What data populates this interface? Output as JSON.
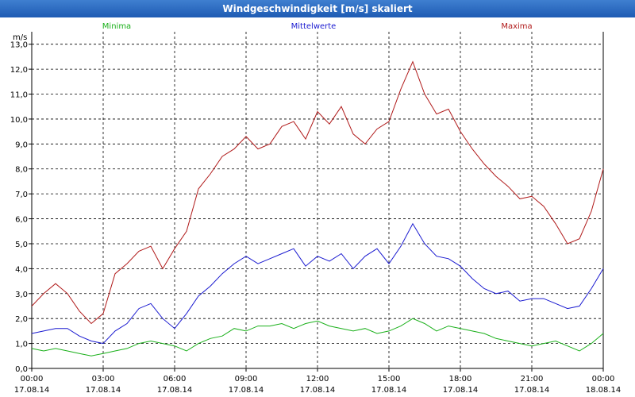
{
  "window": {
    "title": "Windgeschwindigkeit [m/s] skaliert"
  },
  "chart_data": {
    "type": "line",
    "title": "Windgeschwindigkeit [m/s] skaliert",
    "ylabel": "m/s",
    "ylim": [
      0,
      13.5
    ],
    "xlim_hours": [
      0,
      24
    ],
    "grid": true,
    "legend_position": "top",
    "y_ticks": [
      "0,0",
      "1,0",
      "2,0",
      "3,0",
      "4,0",
      "5,0",
      "6,0",
      "7,0",
      "8,0",
      "9,0",
      "10,0",
      "11,0",
      "12,0",
      "13,0"
    ],
    "x_ticks": [
      {
        "time": "00:00",
        "date": "17.08.14"
      },
      {
        "time": "03:00",
        "date": "17.08.14"
      },
      {
        "time": "06:00",
        "date": "17.08.14"
      },
      {
        "time": "09:00",
        "date": "17.08.14"
      },
      {
        "time": "12:00",
        "date": "17.08.14"
      },
      {
        "time": "15:00",
        "date": "17.08.14"
      },
      {
        "time": "18:00",
        "date": "17.08.14"
      },
      {
        "time": "21:00",
        "date": "17.08.14"
      },
      {
        "time": "00:00",
        "date": "18.08.14"
      }
    ],
    "series": [
      {
        "name": "Minima",
        "color": "#1ab01a",
        "x": [
          0,
          0.5,
          1,
          1.5,
          2,
          2.5,
          3,
          3.5,
          4,
          4.5,
          5,
          5.5,
          6,
          6.5,
          7,
          7.5,
          8,
          8.5,
          9,
          9.5,
          10,
          10.5,
          11,
          11.5,
          12,
          12.5,
          13,
          13.5,
          14,
          14.5,
          15,
          15.5,
          16,
          16.5,
          17,
          17.5,
          18,
          18.5,
          19,
          19.5,
          20,
          20.5,
          21,
          21.5,
          22,
          22.5,
          23,
          23.5,
          24
        ],
        "values": [
          0.8,
          0.7,
          0.8,
          0.7,
          0.6,
          0.5,
          0.6,
          0.7,
          0.8,
          1.0,
          1.1,
          1.0,
          0.9,
          0.7,
          1.0,
          1.2,
          1.3,
          1.6,
          1.5,
          1.7,
          1.7,
          1.8,
          1.6,
          1.8,
          1.9,
          1.7,
          1.6,
          1.5,
          1.6,
          1.4,
          1.5,
          1.7,
          2.0,
          1.8,
          1.5,
          1.7,
          1.6,
          1.5,
          1.4,
          1.2,
          1.1,
          1.0,
          0.9,
          1.0,
          1.1,
          0.9,
          0.7,
          1.0,
          1.4
        ]
      },
      {
        "name": "Mittelwerte",
        "color": "#1a1ad0",
        "x": [
          0,
          0.5,
          1,
          1.5,
          2,
          2.5,
          3,
          3.5,
          4,
          4.5,
          5,
          5.5,
          6,
          6.5,
          7,
          7.5,
          8,
          8.5,
          9,
          9.5,
          10,
          10.5,
          11,
          11.5,
          12,
          12.5,
          13,
          13.5,
          14,
          14.5,
          15,
          15.5,
          16,
          16.5,
          17,
          17.5,
          18,
          18.5,
          19,
          19.5,
          20,
          20.5,
          21,
          21.5,
          22,
          22.5,
          23,
          23.5,
          24
        ],
        "values": [
          1.4,
          1.5,
          1.6,
          1.6,
          1.3,
          1.1,
          1.0,
          1.5,
          1.8,
          2.4,
          2.6,
          2.0,
          1.6,
          2.2,
          2.9,
          3.3,
          3.8,
          4.2,
          4.5,
          4.2,
          4.4,
          4.6,
          4.8,
          4.1,
          4.5,
          4.3,
          4.6,
          4.0,
          4.5,
          4.8,
          4.2,
          4.9,
          5.8,
          5.0,
          4.5,
          4.4,
          4.1,
          3.6,
          3.2,
          3.0,
          3.1,
          2.7,
          2.8,
          2.8,
          2.6,
          2.4,
          2.5,
          3.2,
          4.0
        ]
      },
      {
        "name": "Maxima",
        "color": "#b01a1a",
        "x": [
          0,
          0.5,
          1,
          1.5,
          2,
          2.5,
          3,
          3.5,
          4,
          4.5,
          5,
          5.5,
          6,
          6.5,
          7,
          7.5,
          8,
          8.5,
          9,
          9.5,
          10,
          10.5,
          11,
          11.5,
          12,
          12.5,
          13,
          13.5,
          14,
          14.5,
          15,
          15.5,
          16,
          16.5,
          17,
          17.5,
          18,
          18.5,
          19,
          19.5,
          20,
          20.5,
          21,
          21.5,
          22,
          22.5,
          23,
          23.5,
          24
        ],
        "values": [
          2.5,
          3.0,
          3.4,
          3.0,
          2.3,
          1.8,
          2.2,
          3.8,
          4.2,
          4.7,
          4.9,
          4.0,
          4.8,
          5.5,
          7.2,
          7.8,
          8.5,
          8.8,
          9.3,
          8.8,
          9.0,
          9.7,
          9.9,
          9.2,
          10.3,
          9.8,
          10.5,
          9.4,
          9.0,
          9.6,
          9.9,
          11.2,
          12.3,
          11.0,
          10.2,
          10.4,
          9.5,
          8.8,
          8.2,
          7.7,
          7.3,
          6.8,
          6.9,
          6.5,
          5.8,
          5.0,
          5.2,
          6.3,
          8.0
        ]
      }
    ]
  }
}
